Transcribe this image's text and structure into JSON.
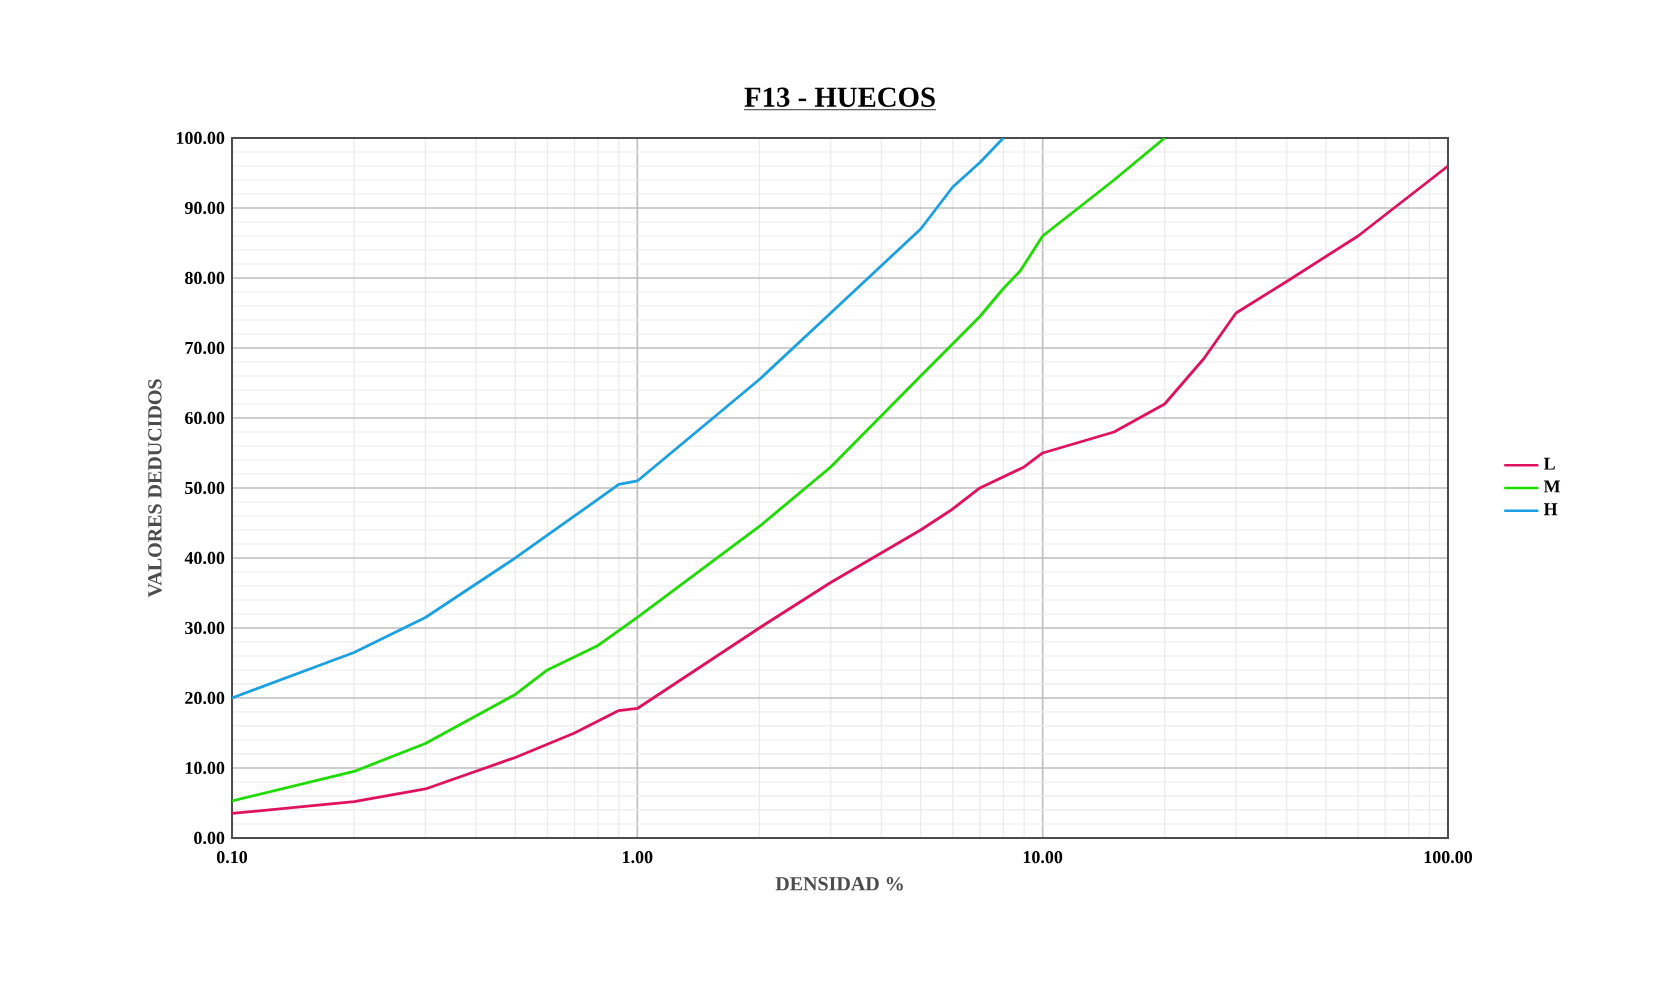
{
  "chart_data": {
    "type": "line",
    "title": "F13 - HUECOS",
    "xlabel": "DENSIDAD %",
    "ylabel": "VALORES DEDUCIDOS",
    "log": "x",
    "grid": true,
    "legend": "right",
    "marker": "none",
    "line_style": "solid",
    "xlim": [
      0.1,
      100
    ],
    "ylim": [
      0,
      100
    ],
    "xticks": [
      {
        "value": 0.1,
        "label": "0.10"
      },
      {
        "value": 1,
        "label": "1.00"
      },
      {
        "value": 10,
        "label": "10.00"
      },
      {
        "value": 100,
        "label": "100.00"
      }
    ],
    "yticks": [
      {
        "value": 0,
        "label": "0.00"
      },
      {
        "value": 10,
        "label": "10.00"
      },
      {
        "value": 20,
        "label": "20.00"
      },
      {
        "value": 30,
        "label": "30.00"
      },
      {
        "value": 40,
        "label": "40.00"
      },
      {
        "value": 50,
        "label": "50.00"
      },
      {
        "value": 60,
        "label": "60.00"
      },
      {
        "value": 70,
        "label": "70.00"
      },
      {
        "value": 80,
        "label": "80.00"
      },
      {
        "value": 90,
        "label": "90.00"
      },
      {
        "value": 100,
        "label": "100.00"
      }
    ],
    "series": [
      {
        "name": "L",
        "color": "#e0115f",
        "x": [
          0.1,
          0.2,
          0.3,
          0.5,
          0.7,
          0.9,
          1.0,
          2,
          3,
          5,
          6,
          7,
          9,
          10,
          15,
          20,
          25,
          30,
          40,
          60,
          100
        ],
        "values": [
          3.5,
          5.2,
          7,
          11.5,
          15,
          18.2,
          18.5,
          30,
          36.5,
          44,
          47,
          50,
          53,
          55,
          58,
          62,
          68.5,
          75,
          79.5,
          86,
          96
        ]
      },
      {
        "name": "M",
        "color": "#1edc00",
        "x": [
          0.1,
          0.2,
          0.3,
          0.5,
          0.6,
          0.8,
          1.0,
          2,
          3,
          5,
          7,
          8,
          8.8,
          10,
          15,
          20
        ],
        "values": [
          5.3,
          9.5,
          13.5,
          20.5,
          24,
          27.5,
          31.5,
          44.5,
          53,
          66,
          74.5,
          78.5,
          81,
          86,
          94,
          100
        ]
      },
      {
        "name": "H",
        "color": "#1ba1e2",
        "x": [
          0.1,
          0.2,
          0.3,
          0.5,
          0.7,
          0.9,
          1.0,
          2,
          3,
          5,
          6,
          7,
          8
        ],
        "values": [
          20,
          26.5,
          31.5,
          40,
          46,
          50.5,
          51,
          65.5,
          75,
          87,
          93,
          96.5,
          100
        ]
      }
    ]
  }
}
